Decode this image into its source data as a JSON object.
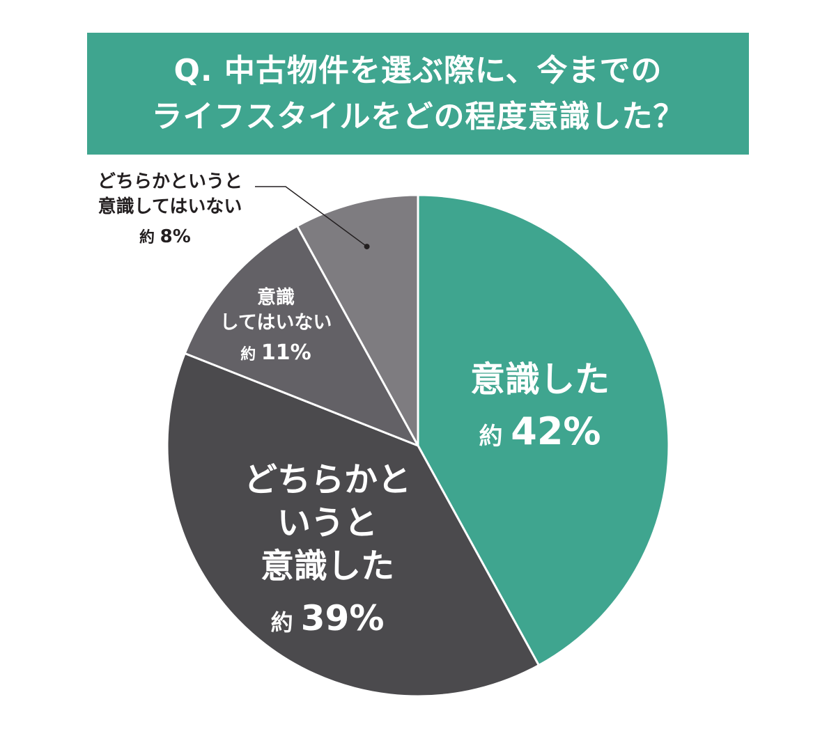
{
  "title": {
    "line1": "Q. 中古物件を選ぶ際に、今までの",
    "line2": "ライフスタイルをどの程度意識した？"
  },
  "colors": {
    "banner": "#3fa58f",
    "slice_1": "#3fa58f",
    "slice_2": "#4b4a4d",
    "slice_3": "#636166",
    "slice_4": "#7e7c80",
    "text_on_dark": "#ffffff",
    "text_outside": "#231f20"
  },
  "chart_data": {
    "type": "pie",
    "title": "Q. 中古物件を選ぶ際に、今までのライフスタイルをどの程度意識した？",
    "unit": "%",
    "slices": [
      {
        "label_lines": [
          "意識した"
        ],
        "prefix": "約",
        "value": 42,
        "value_text": "42%",
        "color": "#3fa58f"
      },
      {
        "label_lines": [
          "どちらかと",
          "いうと",
          "意識した"
        ],
        "prefix": "約",
        "value": 39,
        "value_text": "39%",
        "color": "#4b4a4d"
      },
      {
        "label_lines": [
          "意識",
          "してはいない"
        ],
        "prefix": "約",
        "value": 11,
        "value_text": "11%",
        "color": "#636166"
      },
      {
        "label_lines": [
          "どちらかというと",
          "意識してはいない"
        ],
        "prefix": "約",
        "value": 8,
        "value_text": "8%",
        "color": "#7e7c80"
      }
    ]
  }
}
